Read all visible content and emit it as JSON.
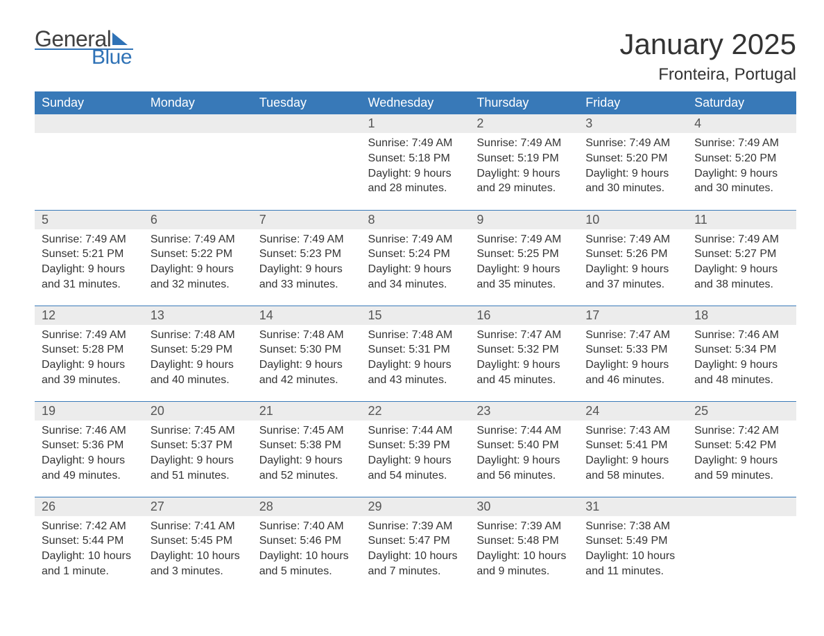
{
  "logo": {
    "word1": "General",
    "word2": "Blue",
    "accent": "#2f72b6",
    "text_color": "#404040"
  },
  "title": "January 2025",
  "location": "Fronteira, Portugal",
  "colors": {
    "header_bg": "#3879b8",
    "header_text": "#ffffff",
    "daynum_bg": "#ececec",
    "daynum_text": "#555555",
    "body_text": "#333333",
    "row_divider": "#3879b8",
    "page_bg": "#ffffff"
  },
  "typography": {
    "title_fontsize": 42,
    "location_fontsize": 24,
    "weekday_fontsize": 18,
    "daynum_fontsize": 18,
    "body_fontsize": 16,
    "font_family": "Arial"
  },
  "calendar": {
    "type": "table",
    "weekdays": [
      "Sunday",
      "Monday",
      "Tuesday",
      "Wednesday",
      "Thursday",
      "Friday",
      "Saturday"
    ],
    "weeks": [
      [
        {
          "day": ""
        },
        {
          "day": ""
        },
        {
          "day": ""
        },
        {
          "day": "1",
          "sunrise": "Sunrise: 7:49 AM",
          "sunset": "Sunset: 5:18 PM",
          "daylight1": "Daylight: 9 hours",
          "daylight2": "and 28 minutes."
        },
        {
          "day": "2",
          "sunrise": "Sunrise: 7:49 AM",
          "sunset": "Sunset: 5:19 PM",
          "daylight1": "Daylight: 9 hours",
          "daylight2": "and 29 minutes."
        },
        {
          "day": "3",
          "sunrise": "Sunrise: 7:49 AM",
          "sunset": "Sunset: 5:20 PM",
          "daylight1": "Daylight: 9 hours",
          "daylight2": "and 30 minutes."
        },
        {
          "day": "4",
          "sunrise": "Sunrise: 7:49 AM",
          "sunset": "Sunset: 5:20 PM",
          "daylight1": "Daylight: 9 hours",
          "daylight2": "and 30 minutes."
        }
      ],
      [
        {
          "day": "5",
          "sunrise": "Sunrise: 7:49 AM",
          "sunset": "Sunset: 5:21 PM",
          "daylight1": "Daylight: 9 hours",
          "daylight2": "and 31 minutes."
        },
        {
          "day": "6",
          "sunrise": "Sunrise: 7:49 AM",
          "sunset": "Sunset: 5:22 PM",
          "daylight1": "Daylight: 9 hours",
          "daylight2": "and 32 minutes."
        },
        {
          "day": "7",
          "sunrise": "Sunrise: 7:49 AM",
          "sunset": "Sunset: 5:23 PM",
          "daylight1": "Daylight: 9 hours",
          "daylight2": "and 33 minutes."
        },
        {
          "day": "8",
          "sunrise": "Sunrise: 7:49 AM",
          "sunset": "Sunset: 5:24 PM",
          "daylight1": "Daylight: 9 hours",
          "daylight2": "and 34 minutes."
        },
        {
          "day": "9",
          "sunrise": "Sunrise: 7:49 AM",
          "sunset": "Sunset: 5:25 PM",
          "daylight1": "Daylight: 9 hours",
          "daylight2": "and 35 minutes."
        },
        {
          "day": "10",
          "sunrise": "Sunrise: 7:49 AM",
          "sunset": "Sunset: 5:26 PM",
          "daylight1": "Daylight: 9 hours",
          "daylight2": "and 37 minutes."
        },
        {
          "day": "11",
          "sunrise": "Sunrise: 7:49 AM",
          "sunset": "Sunset: 5:27 PM",
          "daylight1": "Daylight: 9 hours",
          "daylight2": "and 38 minutes."
        }
      ],
      [
        {
          "day": "12",
          "sunrise": "Sunrise: 7:49 AM",
          "sunset": "Sunset: 5:28 PM",
          "daylight1": "Daylight: 9 hours",
          "daylight2": "and 39 minutes."
        },
        {
          "day": "13",
          "sunrise": "Sunrise: 7:48 AM",
          "sunset": "Sunset: 5:29 PM",
          "daylight1": "Daylight: 9 hours",
          "daylight2": "and 40 minutes."
        },
        {
          "day": "14",
          "sunrise": "Sunrise: 7:48 AM",
          "sunset": "Sunset: 5:30 PM",
          "daylight1": "Daylight: 9 hours",
          "daylight2": "and 42 minutes."
        },
        {
          "day": "15",
          "sunrise": "Sunrise: 7:48 AM",
          "sunset": "Sunset: 5:31 PM",
          "daylight1": "Daylight: 9 hours",
          "daylight2": "and 43 minutes."
        },
        {
          "day": "16",
          "sunrise": "Sunrise: 7:47 AM",
          "sunset": "Sunset: 5:32 PM",
          "daylight1": "Daylight: 9 hours",
          "daylight2": "and 45 minutes."
        },
        {
          "day": "17",
          "sunrise": "Sunrise: 7:47 AM",
          "sunset": "Sunset: 5:33 PM",
          "daylight1": "Daylight: 9 hours",
          "daylight2": "and 46 minutes."
        },
        {
          "day": "18",
          "sunrise": "Sunrise: 7:46 AM",
          "sunset": "Sunset: 5:34 PM",
          "daylight1": "Daylight: 9 hours",
          "daylight2": "and 48 minutes."
        }
      ],
      [
        {
          "day": "19",
          "sunrise": "Sunrise: 7:46 AM",
          "sunset": "Sunset: 5:36 PM",
          "daylight1": "Daylight: 9 hours",
          "daylight2": "and 49 minutes."
        },
        {
          "day": "20",
          "sunrise": "Sunrise: 7:45 AM",
          "sunset": "Sunset: 5:37 PM",
          "daylight1": "Daylight: 9 hours",
          "daylight2": "and 51 minutes."
        },
        {
          "day": "21",
          "sunrise": "Sunrise: 7:45 AM",
          "sunset": "Sunset: 5:38 PM",
          "daylight1": "Daylight: 9 hours",
          "daylight2": "and 52 minutes."
        },
        {
          "day": "22",
          "sunrise": "Sunrise: 7:44 AM",
          "sunset": "Sunset: 5:39 PM",
          "daylight1": "Daylight: 9 hours",
          "daylight2": "and 54 minutes."
        },
        {
          "day": "23",
          "sunrise": "Sunrise: 7:44 AM",
          "sunset": "Sunset: 5:40 PM",
          "daylight1": "Daylight: 9 hours",
          "daylight2": "and 56 minutes."
        },
        {
          "day": "24",
          "sunrise": "Sunrise: 7:43 AM",
          "sunset": "Sunset: 5:41 PM",
          "daylight1": "Daylight: 9 hours",
          "daylight2": "and 58 minutes."
        },
        {
          "day": "25",
          "sunrise": "Sunrise: 7:42 AM",
          "sunset": "Sunset: 5:42 PM",
          "daylight1": "Daylight: 9 hours",
          "daylight2": "and 59 minutes."
        }
      ],
      [
        {
          "day": "26",
          "sunrise": "Sunrise: 7:42 AM",
          "sunset": "Sunset: 5:44 PM",
          "daylight1": "Daylight: 10 hours",
          "daylight2": "and 1 minute."
        },
        {
          "day": "27",
          "sunrise": "Sunrise: 7:41 AM",
          "sunset": "Sunset: 5:45 PM",
          "daylight1": "Daylight: 10 hours",
          "daylight2": "and 3 minutes."
        },
        {
          "day": "28",
          "sunrise": "Sunrise: 7:40 AM",
          "sunset": "Sunset: 5:46 PM",
          "daylight1": "Daylight: 10 hours",
          "daylight2": "and 5 minutes."
        },
        {
          "day": "29",
          "sunrise": "Sunrise: 7:39 AM",
          "sunset": "Sunset: 5:47 PM",
          "daylight1": "Daylight: 10 hours",
          "daylight2": "and 7 minutes."
        },
        {
          "day": "30",
          "sunrise": "Sunrise: 7:39 AM",
          "sunset": "Sunset: 5:48 PM",
          "daylight1": "Daylight: 10 hours",
          "daylight2": "and 9 minutes."
        },
        {
          "day": "31",
          "sunrise": "Sunrise: 7:38 AM",
          "sunset": "Sunset: 5:49 PM",
          "daylight1": "Daylight: 10 hours",
          "daylight2": "and 11 minutes."
        },
        {
          "day": ""
        }
      ]
    ]
  }
}
